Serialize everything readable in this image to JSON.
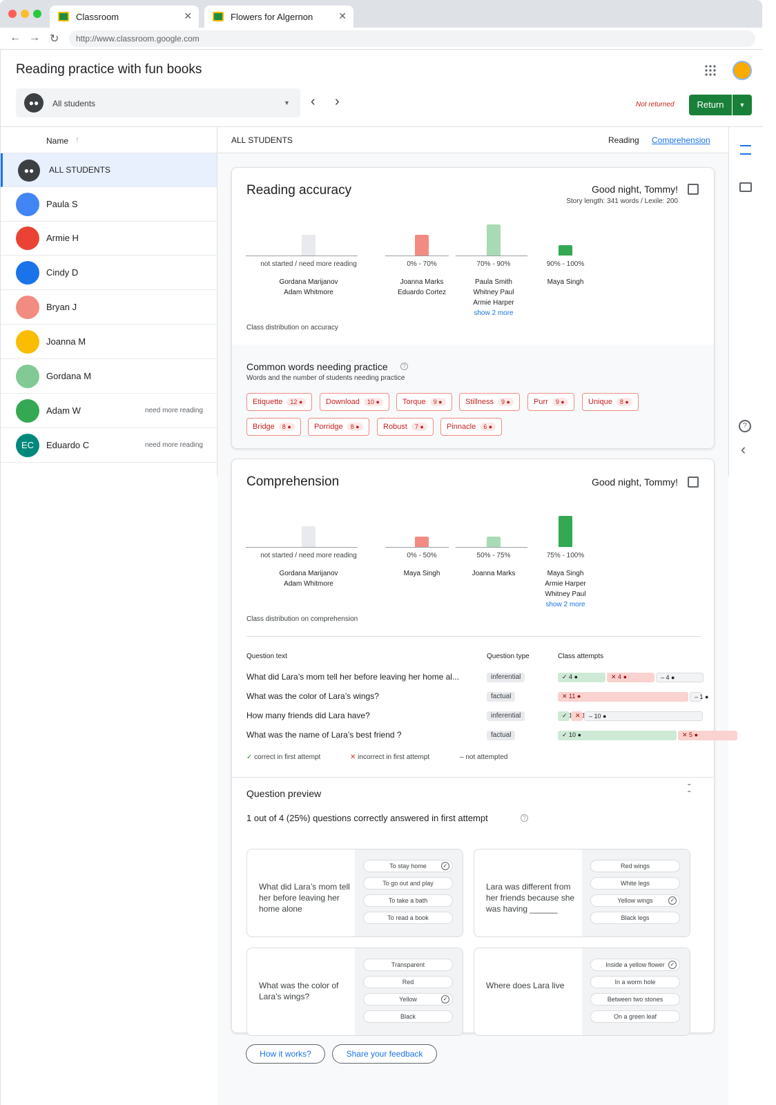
{
  "browser": {
    "tabs": [
      {
        "label": "Classroom"
      },
      {
        "label": "Flowers for Algernon"
      }
    ],
    "url": "http://www.classroom.google.com"
  },
  "header": {
    "title": "Reading practice with fun books",
    "student_select": "All students",
    "status": "Not returned",
    "return_label": "Return"
  },
  "sidebar": {
    "col_header": "Name",
    "all_label": "ALL STUDENTS",
    "students": [
      {
        "name": "Paula S",
        "note": ""
      },
      {
        "name": "Armie H",
        "note": ""
      },
      {
        "name": "Cindy D",
        "note": ""
      },
      {
        "name": "Bryan J",
        "note": ""
      },
      {
        "name": "Joanna M",
        "note": ""
      },
      {
        "name": "Gordana M",
        "note": ""
      },
      {
        "name": "Adam W",
        "note": "need more reading"
      },
      {
        "name": "Eduardo C",
        "note": "need more reading",
        "initials": "EC"
      }
    ]
  },
  "toolbar": {
    "title": "ALL STUDENTS",
    "tab_reading": "Reading",
    "tab_comprehension": "Comprehension"
  },
  "accuracy": {
    "title": "Reading accuracy",
    "story": "Good night, Tommy!",
    "story_meta": "Story length: 341 words / Lexile: 200",
    "caption": "Class distribution on accuracy",
    "buckets": [
      {
        "label": "not started / need more reading",
        "count": 2,
        "names": [
          "Gordana Marijanov",
          "Adam Whitmore"
        ],
        "more": ""
      },
      {
        "label": "0% - 70%",
        "count": 2,
        "names": [
          "Joanna Marks",
          "Eduardo Cortez"
        ],
        "more": ""
      },
      {
        "label": "70% - 90%",
        "count": 3,
        "names": [
          "Paula Smith",
          "Whitney Paul",
          "Armie Harper"
        ],
        "more": "show 2 more"
      },
      {
        "label": "90% - 100%",
        "count": 1,
        "names": [
          "Maya Singh"
        ],
        "more": ""
      }
    ],
    "words_title": "Common words needing practice",
    "words_sub": "Words and the number of students needing practice",
    "words": [
      {
        "w": "Etiquette",
        "n": "12"
      },
      {
        "w": "Download",
        "n": "10"
      },
      {
        "w": "Torque",
        "n": "9"
      },
      {
        "w": "Stillness",
        "n": "9"
      },
      {
        "w": "Purr",
        "n": "9"
      },
      {
        "w": "Unique",
        "n": "8"
      },
      {
        "w": "Bridge",
        "n": "8"
      },
      {
        "w": "Porridge",
        "n": "8"
      },
      {
        "w": "Robust",
        "n": "7"
      },
      {
        "w": "Pinnacle",
        "n": "6"
      }
    ]
  },
  "comprehension": {
    "title": "Comprehension",
    "story": "Good night, Tommy!",
    "caption": "Class distribution on comprehension",
    "buckets": [
      {
        "label": "not started / need more reading",
        "count": 2,
        "names": [
          "Gordana Marijanov",
          "Adam Whitmore"
        ],
        "more": ""
      },
      {
        "label": "0% - 50%",
        "count": 1,
        "names": [
          "Maya Singh"
        ],
        "more": ""
      },
      {
        "label": "50% - 75%",
        "count": 1,
        "names": [
          "Joanna Marks"
        ],
        "more": ""
      },
      {
        "label": "75% - 100%",
        "count": 3,
        "names": [
          "Maya Singh",
          "Armie Harper",
          "Whitney Paul"
        ],
        "more": "show 2 more"
      }
    ],
    "table_headers": [
      "Question text",
      "Question type",
      "Class attempts"
    ],
    "questions": [
      {
        "text": "What did Lara’s mom tell her before leaving her home al...",
        "type": "inferential",
        "correct": "4",
        "incorrect": "4",
        "none": "4"
      },
      {
        "text": "What was the color of Lara’s wings?",
        "type": "factual",
        "correct": "",
        "incorrect": "11",
        "none": "1"
      },
      {
        "text": "How many friends did Lara have?",
        "type": "inferential",
        "correct": "1",
        "incorrect": "1",
        "none": "10"
      },
      {
        "text": "What was the name of Lara’s best friend ?",
        "type": "factual",
        "correct": "10",
        "incorrect": "5",
        "none": ""
      }
    ],
    "legend": [
      "correct in first attempt",
      "incorrect in first attempt",
      "not attempted"
    ],
    "preview_title": "Question preview",
    "preview_summary": "1 out of 4 (25%) questions correctly answered in first attempt",
    "preview": [
      {
        "q": "What did Lara’s mom tell her before leaving her home alone",
        "options": [
          "To stay home",
          "To go out and play",
          "To take a bath",
          "To read a book"
        ],
        "answer": 0
      },
      {
        "q": "Lara was different from her friends because she was having ______",
        "options": [
          "Red wings",
          "White legs",
          "Yellow wings",
          "Black legs"
        ],
        "answer": 2
      },
      {
        "q": "What was the color of Lara’s wings?",
        "options": [
          "Transparent",
          "Red",
          "Yellow",
          "Black"
        ],
        "answer": 2
      },
      {
        "q": "Where does Lara live",
        "options": [
          "Inside a yellow flower",
          "In a worm hole",
          "Between two stones",
          "On a green leaf"
        ],
        "answer": 0
      }
    ]
  },
  "footer": {
    "how": "How it works?",
    "feedback": "Share your feedback"
  },
  "colors": {
    "accent": "#1a73e8",
    "return_green": "#188038",
    "grey_bar": "#e8eaed",
    "low_bar": "#f28b82",
    "mid_bar": "#a8dab5",
    "high_bar": "#34a853"
  }
}
